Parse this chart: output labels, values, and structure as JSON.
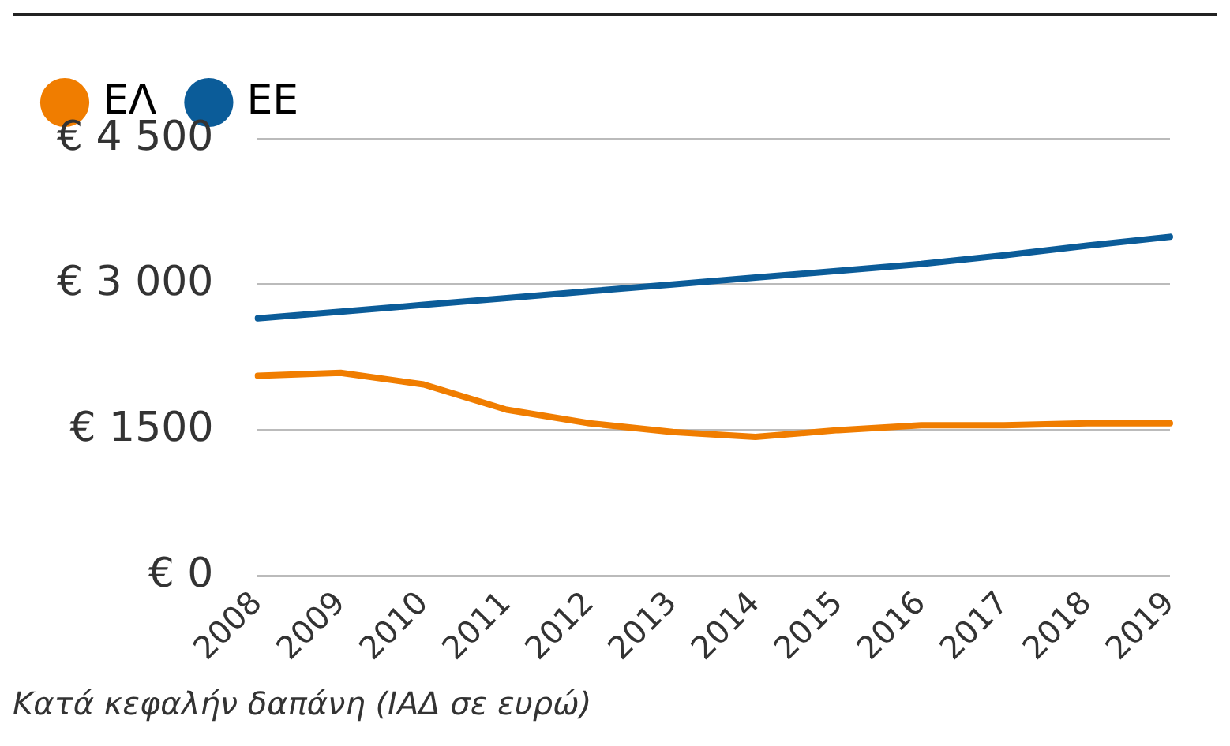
{
  "chart_data": {
    "type": "line",
    "xlabel": "Κατά κεφαλήν δαπάνη (ΙΑΔ σε ευρώ)",
    "categories": [
      "2008",
      "2009",
      "2010",
      "2011",
      "2012",
      "2013",
      "2014",
      "2015",
      "2016",
      "2017",
      "2018",
      "2019"
    ],
    "series": [
      {
        "name": "ΕΛ",
        "color": "#f07d00",
        "values": [
          2060,
          2090,
          1970,
          1710,
          1570,
          1480,
          1430,
          1500,
          1550,
          1550,
          1570,
          1570
        ]
      },
      {
        "name": "ΕΕ",
        "color": "#0b5c99",
        "values": [
          2650,
          2720,
          2790,
          2860,
          2930,
          3000,
          3070,
          3140,
          3210,
          3300,
          3400,
          3490
        ]
      }
    ],
    "ylim": [
      0,
      4500
    ],
    "yticks": [
      {
        "value": 0,
        "label": "€ 0"
      },
      {
        "value": 1500,
        "label": "€ 1500"
      },
      {
        "value": 3000,
        "label": "€ 3 000"
      },
      {
        "value": 4500,
        "label": "€ 4 500"
      }
    ],
    "grid": "y",
    "legend": "top left",
    "marker": "none",
    "line_style": "solid"
  }
}
